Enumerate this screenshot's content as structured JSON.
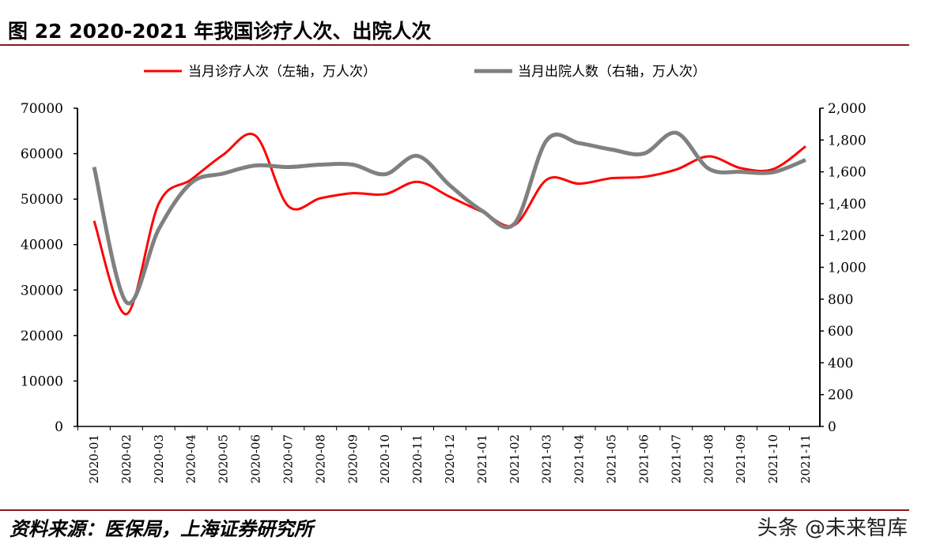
{
  "title": "图 22 2020-2021 年我国诊疗人次、出院人次",
  "source": "资料来源：医保局，上海证券研究所",
  "watermark": "头条 @未来智库",
  "chart_data": {
    "type": "line",
    "categories": [
      "2020-01",
      "2020-02",
      "2020-03",
      "2020-04",
      "2020-05",
      "2020-06",
      "2020-07",
      "2020-08",
      "2020-09",
      "2020-10",
      "2020-11",
      "2020-12",
      "2021-01",
      "2021-02",
      "2021-03",
      "2021-04",
      "2021-05",
      "2021-06",
      "2021-07",
      "2021-08",
      "2021-09",
      "2021-10",
      "2021-11"
    ],
    "series": [
      {
        "name": "当月诊疗人次（左轴，万人次）",
        "axis": "left",
        "color": "#ff0000",
        "values": [
          45200,
          24700,
          49000,
          54300,
          59800,
          63900,
          48500,
          50200,
          51300,
          51100,
          53800,
          50500,
          47200,
          44300,
          54300,
          53400,
          54600,
          54900,
          56500,
          59400,
          56800,
          56600,
          61600
        ]
      },
      {
        "name": "当月出院人数（右轴，万人次）",
        "axis": "right",
        "color": "#808080",
        "values": [
          1630,
          780,
          1240,
          1530,
          1590,
          1640,
          1630,
          1645,
          1645,
          1585,
          1700,
          1515,
          1355,
          1275,
          1800,
          1780,
          1740,
          1715,
          1845,
          1620,
          1600,
          1598,
          1675
        ]
      }
    ],
    "left_axis": {
      "min": 0,
      "max": 70000,
      "ticks": [
        "0",
        "10000",
        "20000",
        "30000",
        "40000",
        "50000",
        "60000",
        "70000"
      ]
    },
    "right_axis": {
      "min": 0,
      "max": 2000,
      "ticks": [
        "0",
        "200",
        "400",
        "600",
        "800",
        "1,000",
        "1,200",
        "1,400",
        "1,600",
        "1,800",
        "2,000"
      ]
    },
    "grid": false,
    "legend": "top"
  }
}
